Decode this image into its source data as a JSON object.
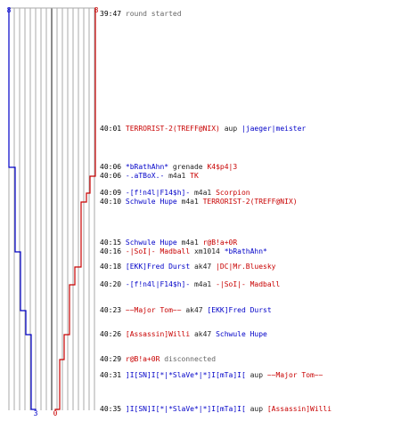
{
  "colors": {
    "blue": "#0000c8",
    "red": "#c80000",
    "grid": "#aaaaaa",
    "center": "#666666",
    "text": "#000000",
    "gray": "#666666"
  },
  "chart_data": {
    "type": "line",
    "x_axis": "time",
    "x": [
      "39:47",
      "40:01",
      "40:06",
      "40:06",
      "40:09",
      "40:10",
      "40:15",
      "40:16",
      "40:18",
      "40:20",
      "40:23",
      "40:26",
      "40:29",
      "40:31",
      "40:35"
    ],
    "series": [
      {
        "color": "#0000c8",
        "start": 8,
        "end": 3
      },
      {
        "color": "#c80000",
        "start": 8,
        "end": 0
      }
    ],
    "top_labels": {
      "blue": "8",
      "red": "8"
    },
    "bottom_labels": {
      "blue": "3",
      "red": "0"
    }
  },
  "events": [
    {
      "time": "39:47",
      "parts": [
        {
          "t": "round started",
          "c": "gray"
        }
      ]
    },
    {
      "time": "40:01",
      "parts": [
        {
          "t": "TERRORIST-2(TREFF@NIX)",
          "c": "red"
        },
        {
          "t": " aup ",
          "c": "k"
        },
        {
          "t": "|jaeger|meister",
          "c": "blue"
        }
      ]
    },
    {
      "time": "40:06",
      "parts": [
        {
          "t": "*bRathAhn*",
          "c": "blue"
        },
        {
          "t": " grenade ",
          "c": "k"
        },
        {
          "t": "K4$p4|3",
          "c": "red"
        }
      ]
    },
    {
      "time": "40:06",
      "parts": [
        {
          "t": "-.aTBoX.-",
          "c": "blue"
        },
        {
          "t": " m4a1 ",
          "c": "k"
        },
        {
          "t": "TK",
          "c": "red"
        }
      ]
    },
    {
      "time": "40:09",
      "parts": [
        {
          "t": "-[f!n4l|F14$h]-",
          "c": "blue"
        },
        {
          "t": " m4a1 ",
          "c": "k"
        },
        {
          "t": "Scorpion",
          "c": "red"
        }
      ]
    },
    {
      "time": "40:10",
      "parts": [
        {
          "t": "Schwule Hupe",
          "c": "blue"
        },
        {
          "t": " m4a1 ",
          "c": "k"
        },
        {
          "t": "TERRORIST-2(TREFF@NIX)",
          "c": "red"
        }
      ]
    },
    {
      "time": "40:15",
      "parts": [
        {
          "t": "Schwule Hupe",
          "c": "blue"
        },
        {
          "t": " m4a1 ",
          "c": "k"
        },
        {
          "t": "r@B!a+0R",
          "c": "red"
        }
      ]
    },
    {
      "time": "40:16",
      "parts": [
        {
          "t": "-|SoI|- Madball",
          "c": "red"
        },
        {
          "t": " xm1014 ",
          "c": "k"
        },
        {
          "t": "*bRathAhn*",
          "c": "blue"
        }
      ]
    },
    {
      "time": "40:18",
      "parts": [
        {
          "t": "[EKK]Fred Durst",
          "c": "blue"
        },
        {
          "t": " ak47 ",
          "c": "k"
        },
        {
          "t": "|DC|Mr.Bluesky",
          "c": "red"
        }
      ]
    },
    {
      "time": "40:20",
      "parts": [
        {
          "t": "-[f!n4l|F14$h]-",
          "c": "blue"
        },
        {
          "t": " m4a1 ",
          "c": "k"
        },
        {
          "t": "-|SoI|- Madball",
          "c": "red"
        }
      ]
    },
    {
      "time": "40:23",
      "parts": [
        {
          "t": "~~Major Tom~~",
          "c": "red"
        },
        {
          "t": " ak47 ",
          "c": "k"
        },
        {
          "t": "[EKK]Fred Durst",
          "c": "blue"
        }
      ]
    },
    {
      "time": "40:26",
      "parts": [
        {
          "t": "[Assassin]Willi",
          "c": "red"
        },
        {
          "t": " ak47 ",
          "c": "k"
        },
        {
          "t": "Schwule Hupe",
          "c": "blue"
        }
      ]
    },
    {
      "time": "40:29",
      "parts": [
        {
          "t": "r@B!a+0R",
          "c": "red"
        },
        {
          "t": " disconnected",
          "c": "gray"
        }
      ]
    },
    {
      "time": "40:31",
      "parts": [
        {
          "t": "]I[SN]I[*|*SlaVe*|*]I[mTa]I[",
          "c": "blue"
        },
        {
          "t": " aup ",
          "c": "k"
        },
        {
          "t": "~~Major Tom~~",
          "c": "red"
        }
      ]
    },
    {
      "time": "40:35",
      "parts": [
        {
          "t": "]I[SN]I[*|*SlaVe*|*]I[mTa]I[",
          "c": "blue"
        },
        {
          "t": " aup ",
          "c": "k"
        },
        {
          "t": "[Assassin]Willi",
          "c": "red"
        }
      ]
    }
  ]
}
